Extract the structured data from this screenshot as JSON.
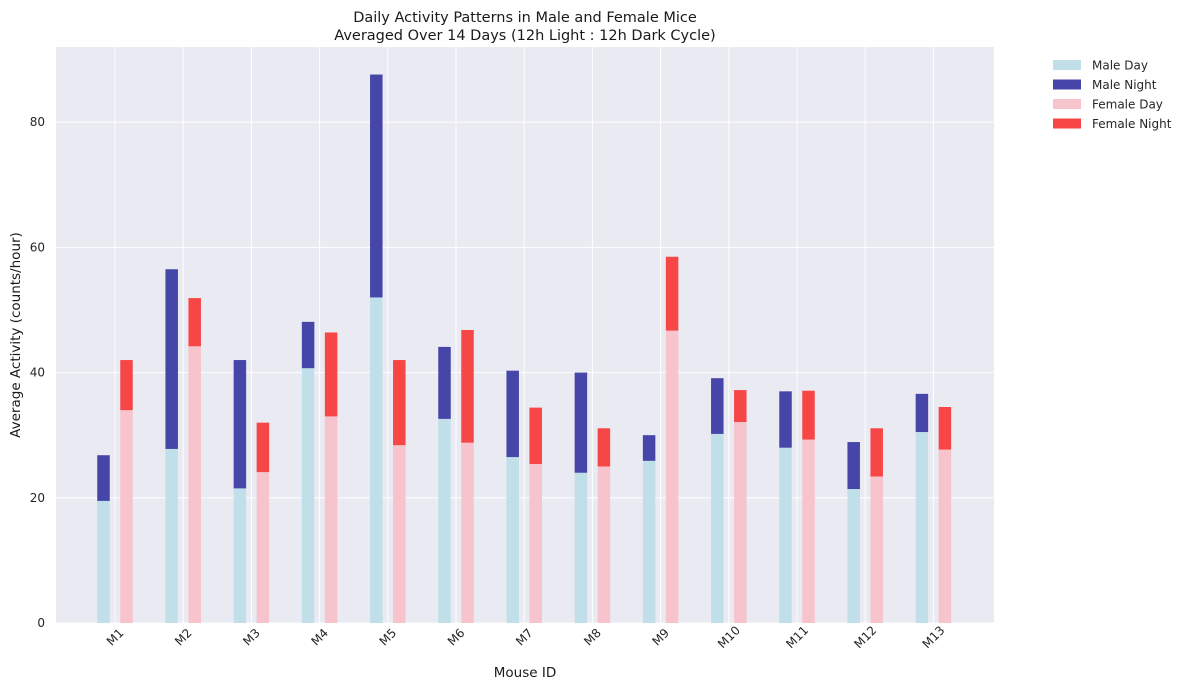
{
  "chart_data": {
    "type": "bar",
    "stacked": true,
    "title": "Daily Activity Patterns in Male and Female Mice\nAveraged Over 14 Days (12h Light : 12h Dark Cycle)",
    "xlabel": "Mouse ID",
    "ylabel": "Average Activity (counts/hour)",
    "ylim": [
      0,
      92
    ],
    "yticks": [
      0,
      20,
      40,
      60,
      80
    ],
    "grid": true,
    "legend_position": "outside-top-right",
    "categories": [
      "M1",
      "M2",
      "M3",
      "M4",
      "M5",
      "M6",
      "M7",
      "M8",
      "M9",
      "M10",
      "M11",
      "M12",
      "M13"
    ],
    "series": [
      {
        "name": "Male Day",
        "group": "male",
        "color": "#c0dfe8",
        "values": [
          19.5,
          27.8,
          21.5,
          40.7,
          52.0,
          32.6,
          26.5,
          24.0,
          25.9,
          30.2,
          28.0,
          21.4,
          30.5
        ]
      },
      {
        "name": "Male Night",
        "group": "male",
        "color": "#4646a8",
        "values": [
          7.3,
          28.7,
          20.5,
          7.4,
          35.6,
          11.5,
          13.8,
          16.0,
          4.1,
          8.9,
          9.0,
          7.5,
          6.1
        ]
      },
      {
        "name": "Female Day",
        "group": "female",
        "color": "#f7c3cc",
        "values": [
          34.0,
          44.2,
          24.1,
          33.0,
          28.4,
          28.8,
          25.4,
          25.0,
          46.7,
          32.1,
          29.3,
          23.4,
          27.7
        ]
      },
      {
        "name": "Female Night",
        "group": "female",
        "color": "#f64646",
        "values": [
          8.0,
          7.7,
          7.9,
          13.4,
          13.6,
          18.0,
          9.0,
          6.1,
          11.8,
          5.1,
          7.8,
          7.7,
          6.8
        ]
      }
    ]
  }
}
